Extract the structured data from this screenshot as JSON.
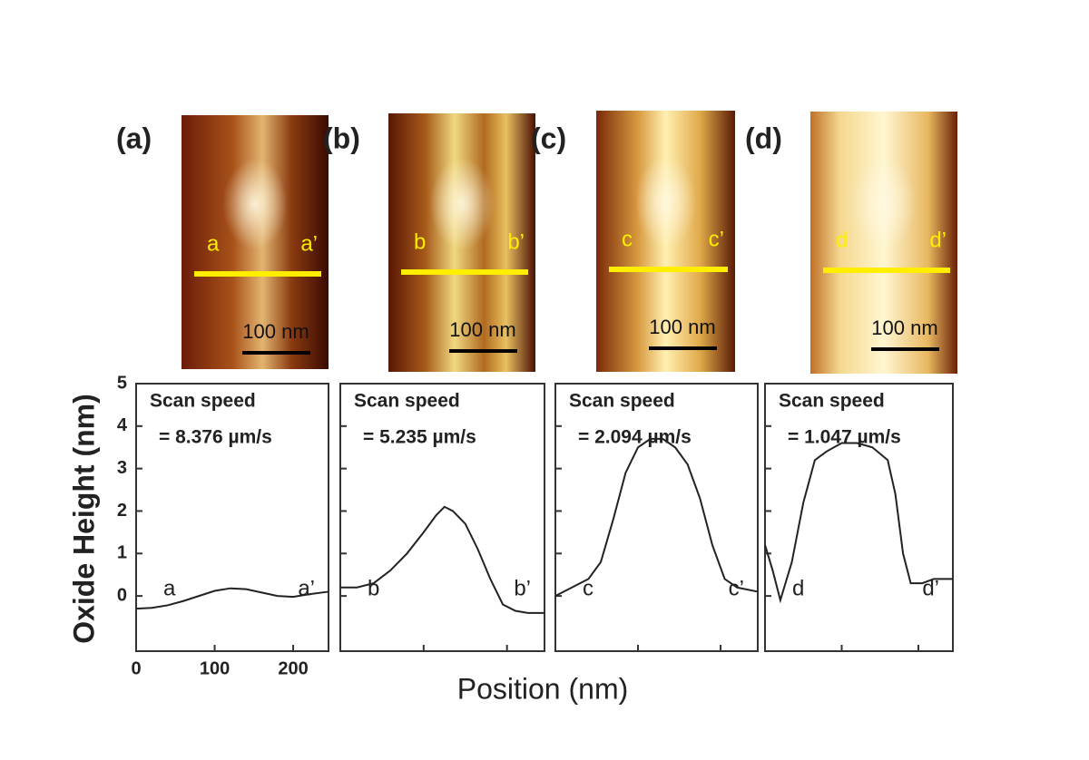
{
  "chart_data": [
    {
      "type": "line",
      "panel": "(a)",
      "ylabel": "Oxide Height (nm)",
      "xlabel": "Position (nm)",
      "annotation": [
        "Scan speed",
        "= 8.376 µm/s"
      ],
      "start_label": "a",
      "end_label": "a’",
      "scale_bar": "100 nm",
      "x": [
        0,
        20,
        40,
        60,
        80,
        100,
        120,
        140,
        160,
        180,
        200,
        220,
        245
      ],
      "values": [
        -0.3,
        -0.28,
        -0.22,
        -0.12,
        0.0,
        0.12,
        0.18,
        0.16,
        0.08,
        0.0,
        -0.02,
        0.04,
        0.1
      ],
      "color": "#222222",
      "xlim": [
        0,
        245
      ],
      "ylim": [
        -1.3,
        5
      ],
      "xticks": [
        0,
        100,
        200
      ],
      "yticks": [
        0,
        1,
        2,
        3,
        4,
        5
      ],
      "tick_labels": true
    },
    {
      "type": "line",
      "panel": "(b)",
      "annotation": [
        "Scan speed",
        "= 5.235 µm/s"
      ],
      "start_label": "b",
      "end_label": "b’",
      "scale_bar": "100 nm",
      "x": [
        0,
        20,
        40,
        60,
        80,
        100,
        115,
        125,
        135,
        150,
        165,
        180,
        195,
        210,
        225,
        245
      ],
      "values": [
        0.2,
        0.2,
        0.3,
        0.6,
        1.0,
        1.5,
        1.9,
        2.1,
        2.0,
        1.7,
        1.1,
        0.4,
        -0.2,
        -0.35,
        -0.4,
        -0.4
      ],
      "color": "#222222",
      "xlim": [
        0,
        245
      ],
      "ylim": [
        -1.3,
        5
      ],
      "xticks": [
        0,
        100,
        200
      ],
      "yticks": [
        0,
        1,
        2,
        3,
        4,
        5
      ],
      "tick_labels": false
    },
    {
      "type": "line",
      "panel": "(c)",
      "annotation": [
        "Scan speed",
        "= 2.094 µm/s"
      ],
      "start_label": "c",
      "end_label": "c’",
      "scale_bar": "100 nm",
      "x": [
        0,
        20,
        40,
        55,
        70,
        85,
        100,
        115,
        130,
        145,
        160,
        175,
        190,
        205,
        220,
        245
      ],
      "values": [
        0.0,
        0.2,
        0.4,
        0.8,
        1.8,
        2.9,
        3.5,
        3.7,
        3.7,
        3.5,
        3.1,
        2.3,
        1.2,
        0.4,
        0.2,
        0.1
      ],
      "color": "#222222",
      "xlim": [
        0,
        245
      ],
      "ylim": [
        -1.3,
        5
      ],
      "xticks": [
        0,
        100,
        200
      ],
      "yticks": [
        0,
        1,
        2,
        3,
        4,
        5
      ],
      "tick_labels": false
    },
    {
      "type": "line",
      "panel": "(d)",
      "annotation": [
        "Scan speed",
        "= 1.047 µm/s"
      ],
      "start_label": "d",
      "end_label": "d’",
      "scale_bar": "100 nm",
      "x": [
        0,
        10,
        20,
        35,
        50,
        65,
        80,
        100,
        120,
        140,
        160,
        170,
        180,
        190,
        205,
        220,
        245
      ],
      "values": [
        1.2,
        0.6,
        -0.1,
        0.8,
        2.2,
        3.2,
        3.4,
        3.6,
        3.6,
        3.5,
        3.2,
        2.4,
        1.0,
        0.3,
        0.3,
        0.4,
        0.4
      ],
      "color": "#222222",
      "xlim": [
        0,
        245
      ],
      "ylim": [
        -1.3,
        5
      ],
      "xticks": [
        0,
        100,
        200
      ],
      "yticks": [
        0,
        1,
        2,
        3,
        4,
        5
      ],
      "tick_labels": false
    }
  ]
}
